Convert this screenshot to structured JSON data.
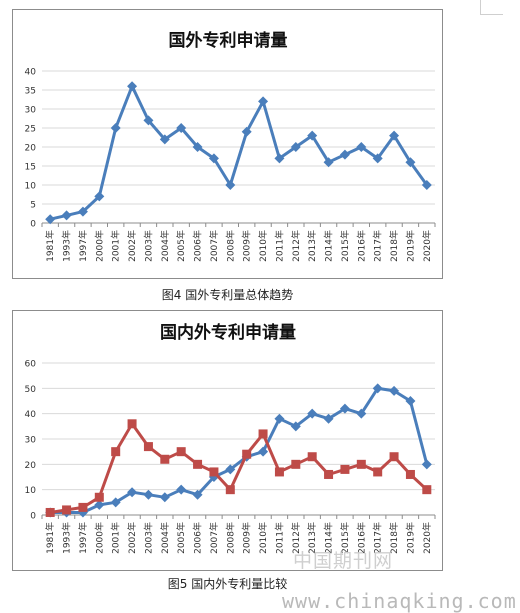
{
  "chart_data": [
    {
      "type": "line",
      "title": "国外专利申请量",
      "categories": [
        "1981年",
        "1993年",
        "1997年",
        "2000年",
        "2001年",
        "2002年",
        "2003年",
        "2004年",
        "2005年",
        "2006年",
        "2007年",
        "2008年",
        "2009年",
        "2010年",
        "2011年",
        "2012年",
        "2013年",
        "2014年",
        "2015年",
        "2016年",
        "2017年",
        "2018年",
        "2019年",
        "2020年"
      ],
      "series": [
        {
          "values": [
            1,
            2,
            3,
            7,
            25,
            36,
            27,
            22,
            25,
            20,
            17,
            10,
            24,
            32,
            17,
            20,
            23,
            16,
            18,
            20,
            17,
            23,
            16,
            10
          ],
          "color": "#4a7ebb",
          "marker": "diamond"
        }
      ],
      "ylim": [
        0,
        40
      ],
      "yticks": [
        0,
        5,
        10,
        15,
        20,
        25,
        30,
        35,
        40
      ],
      "grid": true,
      "legend": "none"
    },
    {
      "type": "line",
      "title": "国内外专利申请量",
      "categories": [
        "1981年",
        "1993年",
        "1997年",
        "2000年",
        "2001年",
        "2002年",
        "2003年",
        "2004年",
        "2005年",
        "2006年",
        "2007年",
        "2008年",
        "2009年",
        "2010年",
        "2011年",
        "2012年",
        "2013年",
        "2014年",
        "2015年",
        "2016年",
        "2017年",
        "2018年",
        "2019年",
        "2020年"
      ],
      "series": [
        {
          "values": [
            1,
            1,
            1,
            4,
            5,
            9,
            8,
            7,
            10,
            8,
            15,
            18,
            23,
            25,
            38,
            35,
            40,
            38,
            42,
            40,
            50,
            49,
            45,
            20
          ],
          "color": "#4a7ebb",
          "marker": "diamond"
        },
        {
          "values": [
            1,
            2,
            3,
            7,
            25,
            36,
            27,
            22,
            25,
            20,
            17,
            10,
            24,
            32,
            17,
            20,
            23,
            16,
            18,
            20,
            17,
            23,
            16,
            10
          ],
          "color": "#be4b48",
          "marker": "square"
        }
      ],
      "ylim": [
        0,
        60
      ],
      "yticks": [
        0,
        10,
        20,
        30,
        40,
        50,
        60
      ],
      "grid": true,
      "legend": "none"
    }
  ],
  "captions": {
    "fig4": "图4 国外专利量总体趋势",
    "fig5": "图5 国内外专利量比较"
  },
  "watermark": {
    "cn": "中国期刊网",
    "url": "www.chinaqking.com"
  }
}
